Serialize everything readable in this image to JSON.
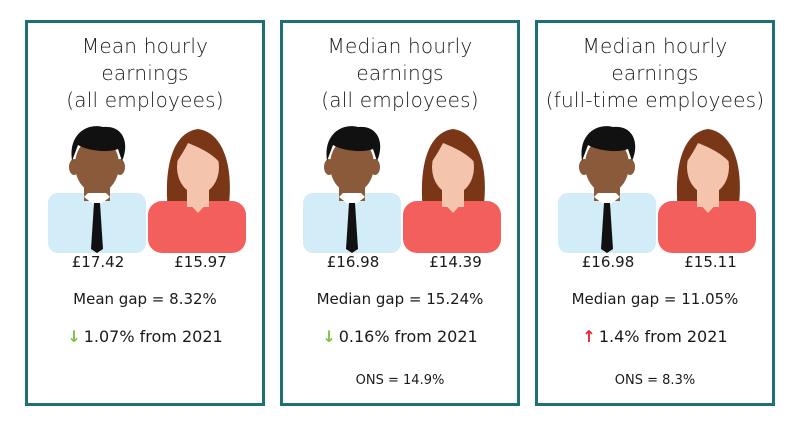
{
  "colors": {
    "border": "#1f6f73",
    "down_arrow": "#7fc241",
    "up_arrow": "#e8252b",
    "male_shirt": "#d2ecf8",
    "female_shirt": "#f35f5c",
    "skin_male": "#8a5a3a",
    "skin_female": "#f4c5ac",
    "hair_female": "#7a3718",
    "hair_male": "#111111"
  },
  "cards": [
    {
      "title": [
        "Mean hourly",
        "earnings",
        "(all employees)"
      ],
      "male_wage": "£17.42",
      "female_wage": "£15.97",
      "gap": "Mean gap = 8.32%",
      "change_direction": "down",
      "change_icon": "down-arrow-icon",
      "change_symbol": "↓",
      "change_text": "1.07% from 2021",
      "ons": ""
    },
    {
      "title": [
        "Median hourly",
        "earnings",
        "(all employees)"
      ],
      "male_wage": "£16.98",
      "female_wage": "£14.39",
      "gap": "Median gap = 15.24%",
      "change_direction": "down",
      "change_icon": "down-arrow-icon",
      "change_symbol": "↓",
      "change_text": "0.16% from 2021",
      "ons": "ONS = 14.9%"
    },
    {
      "title": [
        "Median hourly",
        "earnings",
        "(full-time employees)"
      ],
      "male_wage": "£16.98",
      "female_wage": "£15.11",
      "gap": "Median gap = 11.05%",
      "change_direction": "up",
      "change_icon": "up-arrow-icon",
      "change_symbol": "↑",
      "change_text": "1.4% from 2021",
      "ons": "ONS = 8.3%"
    }
  ]
}
